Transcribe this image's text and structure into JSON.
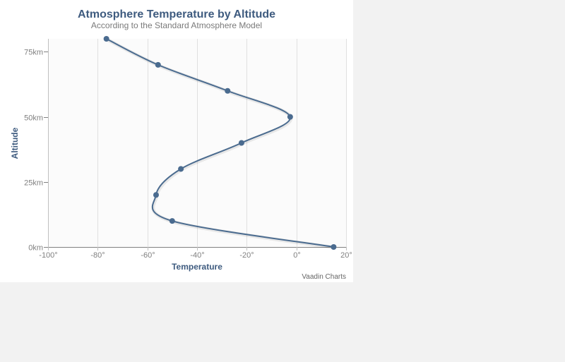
{
  "chart_data": {
    "type": "line",
    "title": "Atmosphere Temperature by Altitude",
    "subtitle": "According to the Standard Atmosphere Model",
    "xlabel": "Temperature",
    "ylabel": "Altitude",
    "xlim": [
      -100,
      20
    ],
    "ylim": [
      0,
      80
    ],
    "x_ticks": [
      -100,
      -80,
      -60,
      -40,
      -20,
      0,
      20
    ],
    "x_tick_labels": [
      "-100°",
      "-80°",
      "-60°",
      "-40°",
      "-20°",
      "0°",
      "20°"
    ],
    "y_ticks": [
      0,
      25,
      50,
      75
    ],
    "y_tick_labels": [
      "0km",
      "25km",
      "50km",
      "75km"
    ],
    "inverted_axes": true,
    "grid": "vertical",
    "legend": "none",
    "series": [
      {
        "color": "#4a6b8f",
        "points": [
          {
            "altitude": 0,
            "temperature": 15
          },
          {
            "altitude": 10,
            "temperature": -50
          },
          {
            "altitude": 20,
            "temperature": -56.5
          },
          {
            "altitude": 30,
            "temperature": -46.5
          },
          {
            "altitude": 40,
            "temperature": -22.1
          },
          {
            "altitude": 50,
            "temperature": -2.5
          },
          {
            "altitude": 60,
            "temperature": -27.7
          },
          {
            "altitude": 70,
            "temperature": -55.7
          },
          {
            "altitude": 80,
            "temperature": -76.5
          }
        ]
      }
    ],
    "credits": "Vaadin Charts"
  }
}
